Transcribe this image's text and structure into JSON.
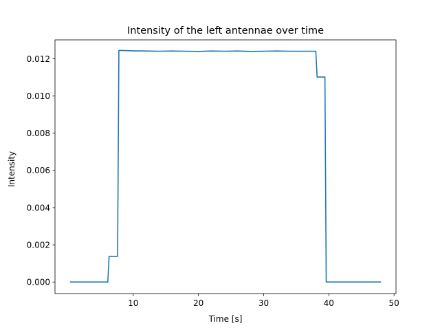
{
  "chart_data": {
    "type": "line",
    "title": "Intensity of the left antennae over time",
    "xlabel": "Time [s]",
    "ylabel": "Intensity",
    "xlim": [
      -2.0,
      50.3
    ],
    "ylim": [
      -0.00062,
      0.01302
    ],
    "xticks": [
      10,
      20,
      30,
      40,
      50
    ],
    "yticks": [
      0.0,
      0.002,
      0.004,
      0.006,
      0.008,
      0.01,
      0.012
    ],
    "ytick_labels": [
      "0.000",
      "0.002",
      "0.004",
      "0.006",
      "0.008",
      "0.010",
      "0.012"
    ],
    "grid": false,
    "series": [
      {
        "color": "#1f77b4",
        "x": [
          0.3,
          6.1,
          6.3,
          7.6,
          7.8,
          8.2,
          10,
          12,
          14,
          16,
          18,
          20,
          22,
          24,
          26,
          28,
          30,
          32,
          34,
          36,
          38.0,
          38.2,
          39.4,
          39.6,
          48.0
        ],
        "y": [
          0,
          0,
          0.00138,
          0.00138,
          0.01245,
          0.01245,
          0.01243,
          0.01242,
          0.01241,
          0.01242,
          0.01241,
          0.0124,
          0.01242,
          0.01241,
          0.01242,
          0.0124,
          0.01241,
          0.01242,
          0.01241,
          0.01241,
          0.01241,
          0.01102,
          0.01102,
          0,
          0
        ]
      }
    ]
  }
}
